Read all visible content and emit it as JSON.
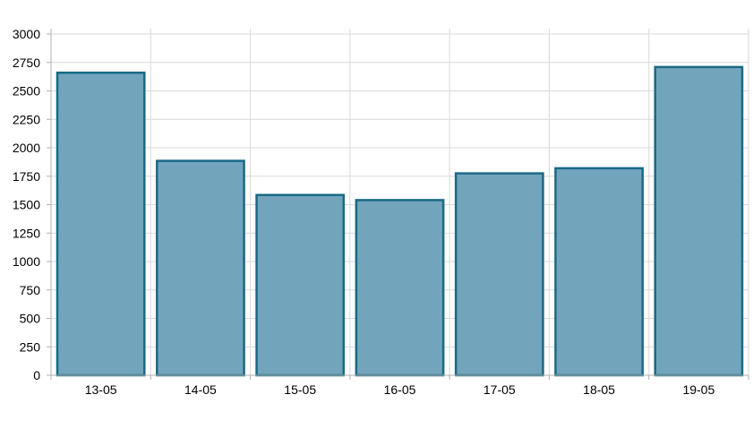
{
  "chart_data": {
    "type": "bar",
    "title": "",
    "xlabel": "",
    "ylabel": "",
    "categories": [
      "13-05",
      "14-05",
      "15-05",
      "16-05",
      "17-05",
      "18-05",
      "19-05"
    ],
    "values": [
      2660,
      1885,
      1585,
      1540,
      1775,
      1820,
      2710
    ],
    "ylim": [
      0,
      3000
    ],
    "yticks": [
      "0",
      "250",
      "500",
      "750",
      "1000",
      "1250",
      "1500",
      "1750",
      "2000",
      "2250",
      "2500",
      "2750",
      "3000"
    ],
    "grid": true,
    "legend": "none",
    "colors": {
      "bar_fill": "#72a5bc",
      "bar_stroke": "#1a6985"
    }
  }
}
